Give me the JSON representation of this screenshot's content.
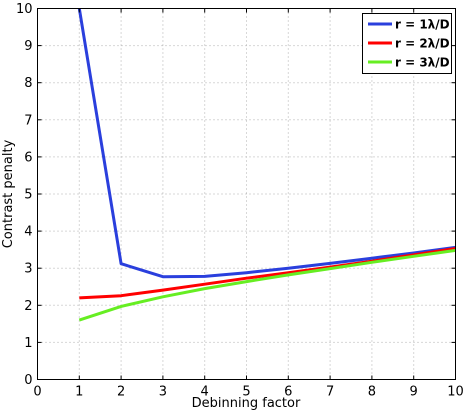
{
  "chart_data": {
    "type": "line",
    "xlabel": "Debinning factor",
    "ylabel": "Contrast penalty",
    "xlim": [
      0,
      10
    ],
    "ylim": [
      0,
      10
    ],
    "xticks": [
      "0",
      "1",
      "2",
      "3",
      "4",
      "5",
      "6",
      "7",
      "8",
      "9",
      "10"
    ],
    "yticks": [
      "0",
      "1",
      "2",
      "3",
      "4",
      "5",
      "6",
      "7",
      "8",
      "9",
      "10"
    ],
    "grid": true,
    "legend": "top-right",
    "series": [
      {
        "name": "r = 1λ/D",
        "color": "#2a3fdd",
        "x": [
          1,
          2,
          3,
          4,
          5,
          6,
          7,
          8,
          9,
          10
        ],
        "values": [
          10.0,
          3.12,
          2.77,
          2.78,
          2.88,
          3.0,
          3.13,
          3.27,
          3.41,
          3.56
        ]
      },
      {
        "name": "r = 2λ/D",
        "color": "#ff0000",
        "x": [
          1,
          2,
          3,
          4,
          5,
          6,
          7,
          8,
          9,
          10
        ],
        "values": [
          2.2,
          2.26,
          2.41,
          2.57,
          2.73,
          2.88,
          3.03,
          3.19,
          3.36,
          3.53
        ]
      },
      {
        "name": "r = 3λ/D",
        "color": "#66ee22",
        "x": [
          1,
          2,
          3,
          4,
          5,
          6,
          7,
          8,
          9,
          10
        ],
        "values": [
          1.6,
          1.97,
          2.23,
          2.45,
          2.64,
          2.82,
          2.99,
          3.16,
          3.32,
          3.48
        ]
      }
    ]
  }
}
